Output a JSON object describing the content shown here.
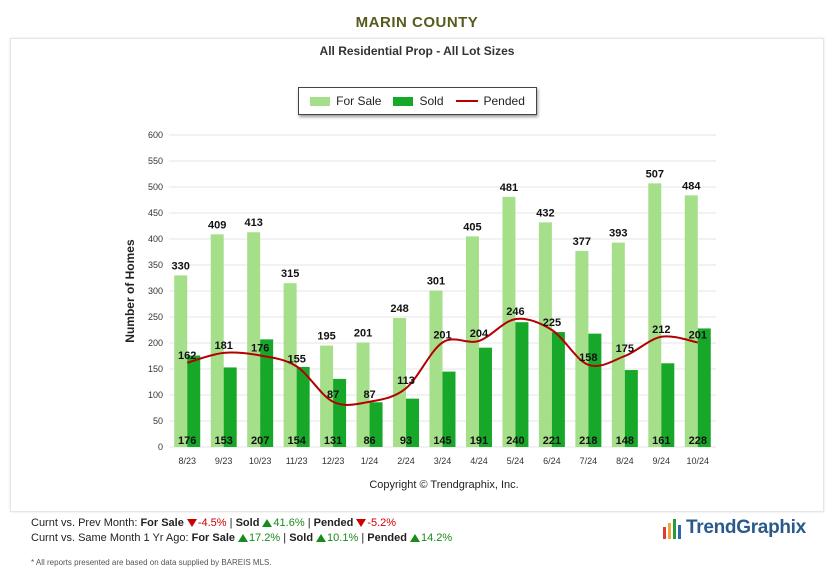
{
  "header": {
    "county": "MARIN COUNTY",
    "subtitle": "All Residential Prop - All Lot Sizes"
  },
  "legend": {
    "for_sale": "For Sale",
    "sold": "Sold",
    "pended": "Pended"
  },
  "colors": {
    "for_sale": "#a6df8a",
    "sold": "#17a82a",
    "pended": "#b30000",
    "grid": "#e4e4e4"
  },
  "chart_data": {
    "type": "bar",
    "title": "All Residential Prop - All Lot Sizes",
    "xlabel": "",
    "ylabel": "Number of Homes",
    "ylim": [
      0,
      600
    ],
    "yticks": [
      0,
      50,
      100,
      150,
      200,
      250,
      300,
      350,
      400,
      450,
      500,
      550,
      600
    ],
    "categories": [
      "8/23",
      "9/23",
      "10/23",
      "11/23",
      "12/23",
      "1/24",
      "2/24",
      "3/24",
      "4/24",
      "5/24",
      "6/24",
      "7/24",
      "8/24",
      "9/24",
      "10/24"
    ],
    "series": [
      {
        "name": "For Sale",
        "kind": "bar",
        "values": [
          330,
          409,
          413,
          315,
          195,
          201,
          248,
          301,
          405,
          481,
          432,
          377,
          393,
          507,
          484
        ]
      },
      {
        "name": "Sold",
        "kind": "bar",
        "values": [
          176,
          153,
          207,
          154,
          131,
          86,
          93,
          145,
          191,
          240,
          221,
          218,
          148,
          161,
          228
        ]
      },
      {
        "name": "Pended",
        "kind": "line",
        "values": [
          162,
          181,
          176,
          155,
          87,
          87,
          113,
          201,
          204,
          246,
          225,
          158,
          175,
          212,
          201
        ]
      }
    ],
    "copyright": "Copyright © Trendgraphix, Inc."
  },
  "footer": {
    "row1": {
      "label": "Curnt vs. Prev Month:",
      "for_sale_label": "For Sale",
      "for_sale_val": "-4.5%",
      "sold_label": "Sold",
      "sold_val": "41.6%",
      "pended_label": "Pended",
      "pended_val": "-5.2%"
    },
    "row2": {
      "label": "Curnt vs. Same Month 1 Yr Ago:",
      "for_sale_label": "For Sale",
      "for_sale_val": "17.2%",
      "sold_label": "Sold",
      "sold_val": "10.1%",
      "pended_label": "Pended",
      "pended_val": "14.2%"
    },
    "sep": "|",
    "note": "* All reports presented are based on data supplied by BAREIS MLS."
  },
  "logo": {
    "text": "TrendGraphix"
  }
}
